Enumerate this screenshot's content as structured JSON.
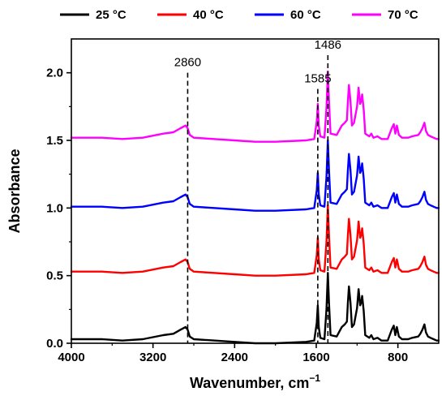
{
  "chart_data": {
    "type": "line",
    "xlabel": "Wavenumber, cm",
    "xlabel_sup": "−1",
    "ylabel": "Absorbance",
    "xlim": [
      4000,
      400
    ],
    "ylim": [
      0,
      2.25
    ],
    "xticks": [
      4000,
      3200,
      2400,
      1600,
      800
    ],
    "xtick_labels": [
      "4000",
      "3200",
      "2400",
      "1600",
      "800"
    ],
    "yticks": [
      0.0,
      0.5,
      1.0,
      1.5,
      2.0
    ],
    "ytick_labels": [
      "0.0",
      "0.5",
      "1.0",
      "1.5",
      "2.0"
    ],
    "legend_position": "top",
    "grid": false,
    "annotations": [
      {
        "label": "2860",
        "x": 2860,
        "y_top": 2.0
      },
      {
        "label": "1585",
        "x": 1585,
        "y_top": 1.88
      },
      {
        "label": "1486",
        "x": 1486,
        "y_top": 2.13
      }
    ],
    "series": [
      {
        "name": "25 °C",
        "color": "#000000",
        "offset": 0.0,
        "points": [
          [
            4000,
            0.03
          ],
          [
            3700,
            0.03
          ],
          [
            3500,
            0.02
          ],
          [
            3300,
            0.03
          ],
          [
            3100,
            0.06
          ],
          [
            3000,
            0.07
          ],
          [
            2930,
            0.1
          ],
          [
            2880,
            0.12
          ],
          [
            2860,
            0.1
          ],
          [
            2840,
            0.05
          ],
          [
            2800,
            0.03
          ],
          [
            2400,
            0.01
          ],
          [
            2200,
            0.0
          ],
          [
            2000,
            0.0
          ],
          [
            1700,
            0.01
          ],
          [
            1620,
            0.02
          ],
          [
            1595,
            0.15
          ],
          [
            1585,
            0.28
          ],
          [
            1575,
            0.12
          ],
          [
            1560,
            0.04
          ],
          [
            1520,
            0.03
          ],
          [
            1500,
            0.25
          ],
          [
            1486,
            0.52
          ],
          [
            1475,
            0.3
          ],
          [
            1460,
            0.06
          ],
          [
            1400,
            0.05
          ],
          [
            1350,
            0.12
          ],
          [
            1320,
            0.14
          ],
          [
            1300,
            0.16
          ],
          [
            1290,
            0.3
          ],
          [
            1280,
            0.42
          ],
          [
            1265,
            0.3
          ],
          [
            1250,
            0.12
          ],
          [
            1230,
            0.14
          ],
          [
            1200,
            0.26
          ],
          [
            1185,
            0.4
          ],
          [
            1170,
            0.28
          ],
          [
            1160,
            0.3
          ],
          [
            1150,
            0.35
          ],
          [
            1135,
            0.24
          ],
          [
            1120,
            0.06
          ],
          [
            1080,
            0.04
          ],
          [
            1060,
            0.06
          ],
          [
            1040,
            0.03
          ],
          [
            1000,
            0.04
          ],
          [
            960,
            0.02
          ],
          [
            900,
            0.02
          ],
          [
            880,
            0.06
          ],
          [
            860,
            0.1
          ],
          [
            840,
            0.13
          ],
          [
            825,
            0.06
          ],
          [
            810,
            0.12
          ],
          [
            790,
            0.05
          ],
          [
            760,
            0.03
          ],
          [
            700,
            0.03
          ],
          [
            660,
            0.04
          ],
          [
            600,
            0.05
          ],
          [
            580,
            0.07
          ],
          [
            560,
            0.1
          ],
          [
            540,
            0.14
          ],
          [
            525,
            0.08
          ],
          [
            505,
            0.05
          ],
          [
            480,
            0.04
          ],
          [
            450,
            0.03
          ],
          [
            420,
            0.02
          ],
          [
            400,
            0.02
          ]
        ]
      },
      {
        "name": "40 °C",
        "color": "#ff0000",
        "offset": 0.5,
        "points": [
          [
            4000,
            0.03
          ],
          [
            3700,
            0.03
          ],
          [
            3500,
            0.02
          ],
          [
            3300,
            0.03
          ],
          [
            3100,
            0.06
          ],
          [
            3000,
            0.07
          ],
          [
            2930,
            0.1
          ],
          [
            2880,
            0.12
          ],
          [
            2860,
            0.1
          ],
          [
            2840,
            0.05
          ],
          [
            2800,
            0.03
          ],
          [
            2400,
            0.01
          ],
          [
            2200,
            0.0
          ],
          [
            2000,
            0.0
          ],
          [
            1700,
            0.01
          ],
          [
            1620,
            0.02
          ],
          [
            1595,
            0.15
          ],
          [
            1585,
            0.28
          ],
          [
            1575,
            0.12
          ],
          [
            1560,
            0.04
          ],
          [
            1520,
            0.03
          ],
          [
            1500,
            0.25
          ],
          [
            1486,
            0.52
          ],
          [
            1475,
            0.3
          ],
          [
            1460,
            0.06
          ],
          [
            1400,
            0.05
          ],
          [
            1350,
            0.12
          ],
          [
            1320,
            0.14
          ],
          [
            1300,
            0.16
          ],
          [
            1290,
            0.3
          ],
          [
            1280,
            0.42
          ],
          [
            1265,
            0.3
          ],
          [
            1250,
            0.12
          ],
          [
            1230,
            0.14
          ],
          [
            1200,
            0.26
          ],
          [
            1185,
            0.4
          ],
          [
            1170,
            0.28
          ],
          [
            1160,
            0.3
          ],
          [
            1150,
            0.35
          ],
          [
            1135,
            0.24
          ],
          [
            1120,
            0.06
          ],
          [
            1080,
            0.04
          ],
          [
            1060,
            0.06
          ],
          [
            1040,
            0.03
          ],
          [
            1000,
            0.04
          ],
          [
            960,
            0.02
          ],
          [
            900,
            0.02
          ],
          [
            880,
            0.06
          ],
          [
            860,
            0.1
          ],
          [
            840,
            0.13
          ],
          [
            825,
            0.06
          ],
          [
            810,
            0.12
          ],
          [
            790,
            0.05
          ],
          [
            760,
            0.03
          ],
          [
            700,
            0.03
          ],
          [
            660,
            0.04
          ],
          [
            600,
            0.05
          ],
          [
            580,
            0.07
          ],
          [
            560,
            0.1
          ],
          [
            540,
            0.14
          ],
          [
            525,
            0.08
          ],
          [
            505,
            0.05
          ],
          [
            480,
            0.04
          ],
          [
            450,
            0.03
          ],
          [
            420,
            0.02
          ],
          [
            400,
            0.02
          ]
        ]
      },
      {
        "name": "60 °C",
        "color": "#0000ff",
        "offset": 0.98,
        "points": [
          [
            4000,
            0.03
          ],
          [
            3700,
            0.03
          ],
          [
            3500,
            0.02
          ],
          [
            3300,
            0.03
          ],
          [
            3100,
            0.06
          ],
          [
            3000,
            0.07
          ],
          [
            2930,
            0.1
          ],
          [
            2880,
            0.12
          ],
          [
            2860,
            0.1
          ],
          [
            2840,
            0.05
          ],
          [
            2800,
            0.03
          ],
          [
            2400,
            0.01
          ],
          [
            2200,
            0.0
          ],
          [
            2000,
            0.0
          ],
          [
            1700,
            0.01
          ],
          [
            1620,
            0.02
          ],
          [
            1595,
            0.15
          ],
          [
            1585,
            0.28
          ],
          [
            1575,
            0.12
          ],
          [
            1560,
            0.04
          ],
          [
            1520,
            0.03
          ],
          [
            1500,
            0.25
          ],
          [
            1486,
            0.52
          ],
          [
            1475,
            0.3
          ],
          [
            1460,
            0.06
          ],
          [
            1400,
            0.05
          ],
          [
            1350,
            0.12
          ],
          [
            1320,
            0.14
          ],
          [
            1300,
            0.16
          ],
          [
            1290,
            0.3
          ],
          [
            1280,
            0.42
          ],
          [
            1265,
            0.3
          ],
          [
            1250,
            0.12
          ],
          [
            1230,
            0.14
          ],
          [
            1200,
            0.26
          ],
          [
            1185,
            0.4
          ],
          [
            1170,
            0.28
          ],
          [
            1160,
            0.3
          ],
          [
            1150,
            0.35
          ],
          [
            1135,
            0.24
          ],
          [
            1120,
            0.06
          ],
          [
            1080,
            0.04
          ],
          [
            1060,
            0.06
          ],
          [
            1040,
            0.03
          ],
          [
            1000,
            0.04
          ],
          [
            960,
            0.02
          ],
          [
            900,
            0.02
          ],
          [
            880,
            0.06
          ],
          [
            860,
            0.1
          ],
          [
            840,
            0.13
          ],
          [
            825,
            0.06
          ],
          [
            810,
            0.12
          ],
          [
            790,
            0.05
          ],
          [
            760,
            0.03
          ],
          [
            700,
            0.03
          ],
          [
            660,
            0.04
          ],
          [
            600,
            0.05
          ],
          [
            580,
            0.07
          ],
          [
            560,
            0.1
          ],
          [
            540,
            0.14
          ],
          [
            525,
            0.08
          ],
          [
            505,
            0.05
          ],
          [
            480,
            0.04
          ],
          [
            450,
            0.03
          ],
          [
            420,
            0.02
          ],
          [
            400,
            0.02
          ]
        ]
      },
      {
        "name": "70 °C",
        "color": "#ff00ff",
        "offset": 1.49,
        "points": [
          [
            4000,
            0.03
          ],
          [
            3700,
            0.03
          ],
          [
            3500,
            0.02
          ],
          [
            3300,
            0.03
          ],
          [
            3100,
            0.06
          ],
          [
            3000,
            0.07
          ],
          [
            2930,
            0.1
          ],
          [
            2880,
            0.12
          ],
          [
            2860,
            0.1
          ],
          [
            2840,
            0.05
          ],
          [
            2800,
            0.03
          ],
          [
            2400,
            0.01
          ],
          [
            2200,
            0.0
          ],
          [
            2000,
            0.0
          ],
          [
            1700,
            0.01
          ],
          [
            1620,
            0.02
          ],
          [
            1595,
            0.15
          ],
          [
            1585,
            0.28
          ],
          [
            1575,
            0.12
          ],
          [
            1560,
            0.04
          ],
          [
            1520,
            0.03
          ],
          [
            1500,
            0.25
          ],
          [
            1486,
            0.52
          ],
          [
            1475,
            0.3
          ],
          [
            1460,
            0.06
          ],
          [
            1400,
            0.05
          ],
          [
            1350,
            0.12
          ],
          [
            1320,
            0.14
          ],
          [
            1300,
            0.16
          ],
          [
            1290,
            0.3
          ],
          [
            1280,
            0.42
          ],
          [
            1265,
            0.3
          ],
          [
            1250,
            0.12
          ],
          [
            1230,
            0.14
          ],
          [
            1200,
            0.26
          ],
          [
            1185,
            0.4
          ],
          [
            1170,
            0.28
          ],
          [
            1160,
            0.3
          ],
          [
            1150,
            0.35
          ],
          [
            1135,
            0.24
          ],
          [
            1120,
            0.06
          ],
          [
            1080,
            0.04
          ],
          [
            1060,
            0.06
          ],
          [
            1040,
            0.03
          ],
          [
            1000,
            0.04
          ],
          [
            960,
            0.02
          ],
          [
            900,
            0.02
          ],
          [
            880,
            0.06
          ],
          [
            860,
            0.1
          ],
          [
            840,
            0.13
          ],
          [
            825,
            0.06
          ],
          [
            810,
            0.12
          ],
          [
            790,
            0.05
          ],
          [
            760,
            0.03
          ],
          [
            700,
            0.03
          ],
          [
            660,
            0.04
          ],
          [
            600,
            0.05
          ],
          [
            580,
            0.07
          ],
          [
            560,
            0.1
          ],
          [
            540,
            0.14
          ],
          [
            525,
            0.08
          ],
          [
            505,
            0.05
          ],
          [
            480,
            0.04
          ],
          [
            450,
            0.03
          ],
          [
            420,
            0.02
          ],
          [
            400,
            0.02
          ]
        ]
      }
    ]
  }
}
